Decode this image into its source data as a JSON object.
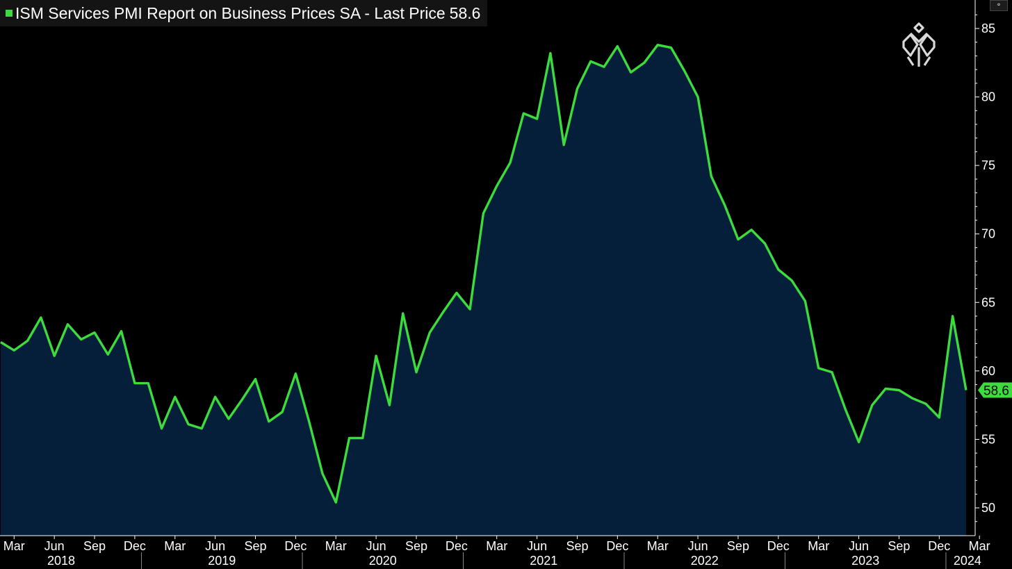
{
  "title": {
    "text": "ISM Services PMI Report on Business Prices SA - Last Price",
    "last_value": "58.6"
  },
  "last_price_label": "58.6",
  "corner_button": "⚬",
  "colors": {
    "line": "#3ddc3d",
    "area": "#051f3b",
    "background": "#000000",
    "last_label_bg": "#3ddc3d"
  },
  "chart_data": {
    "type": "area",
    "title": "ISM Services PMI Report on Business Prices SA - Last Price 58.6",
    "xlabel": "",
    "ylabel": "",
    "ylim": [
      48,
      86.5
    ],
    "yticks": [
      50,
      55,
      60,
      65,
      70,
      75,
      80,
      85
    ],
    "x_start": "2018-02",
    "x": [
      "2018-02",
      "2018-03",
      "2018-04",
      "2018-05",
      "2018-06",
      "2018-07",
      "2018-08",
      "2018-09",
      "2018-10",
      "2018-11",
      "2018-12",
      "2019-01",
      "2019-02",
      "2019-03",
      "2019-04",
      "2019-05",
      "2019-06",
      "2019-07",
      "2019-08",
      "2019-09",
      "2019-10",
      "2019-11",
      "2019-12",
      "2020-01",
      "2020-02",
      "2020-03",
      "2020-04",
      "2020-05",
      "2020-06",
      "2020-07",
      "2020-08",
      "2020-09",
      "2020-10",
      "2020-11",
      "2020-12",
      "2021-01",
      "2021-02",
      "2021-03",
      "2021-04",
      "2021-05",
      "2021-06",
      "2021-07",
      "2021-08",
      "2021-09",
      "2021-10",
      "2021-11",
      "2021-12",
      "2022-01",
      "2022-02",
      "2022-03",
      "2022-04",
      "2022-05",
      "2022-06",
      "2022-07",
      "2022-08",
      "2022-09",
      "2022-10",
      "2022-11",
      "2022-12",
      "2023-01",
      "2023-02",
      "2023-03",
      "2023-04",
      "2023-05",
      "2023-06",
      "2023-07",
      "2023-08",
      "2023-09",
      "2023-10",
      "2023-11",
      "2023-12",
      "2024-01",
      "2024-02"
    ],
    "series": [
      {
        "values": [
          62.1,
          61.5,
          62.2,
          63.9,
          61.1,
          63.4,
          62.3,
          62.8,
          61.2,
          62.9,
          59.1,
          59.1,
          55.8,
          58.1,
          56.1,
          55.8,
          58.1,
          56.5,
          57.9,
          59.4,
          56.3,
          57.0,
          59.8,
          56.3,
          52.5,
          50.4,
          55.1,
          55.1,
          61.1,
          57.5,
          64.2,
          59.9,
          62.8,
          64.3,
          65.7,
          64.5,
          71.5,
          73.5,
          75.2,
          78.8,
          78.4,
          83.2,
          76.5,
          80.6,
          82.6,
          82.2,
          83.7,
          81.8,
          82.5,
          83.8,
          83.6,
          81.9,
          80.0,
          74.2,
          72.1,
          69.6,
          70.3,
          69.3,
          67.4,
          66.6,
          65.1,
          60.2,
          59.9,
          57.2,
          54.8,
          57.5,
          58.7,
          58.6,
          58.0,
          57.6,
          56.6,
          64.0,
          58.6
        ]
      }
    ],
    "month_labels": [
      "Mar",
      "Jun",
      "Sep",
      "Dec",
      "Mar",
      "Jun",
      "Sep",
      "Dec",
      "Mar",
      "Jun",
      "Sep",
      "Dec",
      "Mar",
      "Jun",
      "Sep",
      "Dec",
      "Mar",
      "Jun",
      "Sep",
      "Dec",
      "Mar",
      "Jun",
      "Sep",
      "Dec",
      "Mar"
    ],
    "year_labels": [
      "2018",
      "2019",
      "2020",
      "2021",
      "2022",
      "2023",
      "2024"
    ],
    "y_axis_position": "right",
    "grid": false,
    "legend": "top-left"
  }
}
